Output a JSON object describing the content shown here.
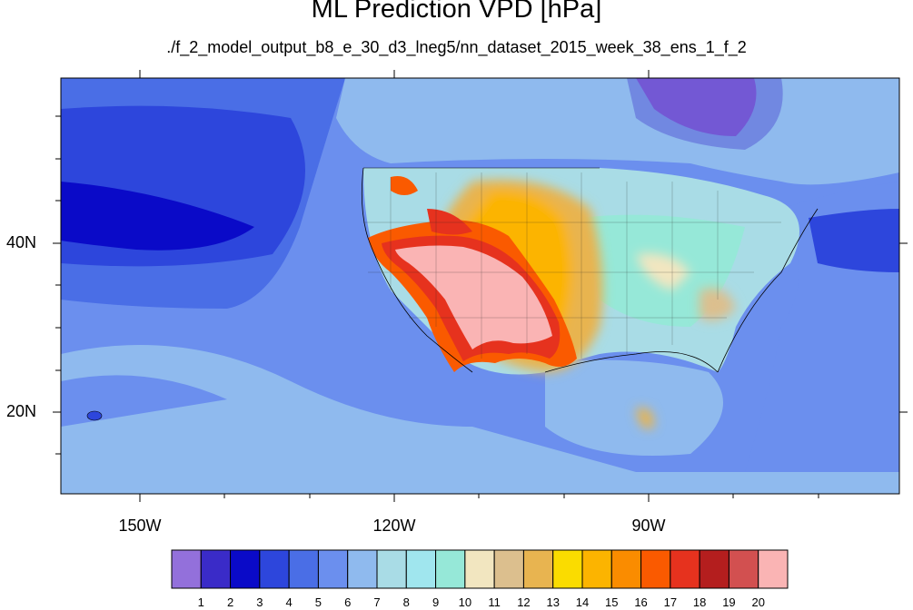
{
  "title": "ML Prediction VPD [hPa]",
  "subtitle": "./f_2_model_output_b8_e_30_d3_lneg5/nn_dataset_2015_week_38_ens_1_f_2",
  "axes": {
    "lon_labels": [
      "150W",
      "120W",
      "90W"
    ],
    "lat_labels": [
      "40N",
      "20N"
    ]
  },
  "colorbar": {
    "labels": [
      "1",
      "2",
      "3",
      "4",
      "5",
      "6",
      "7",
      "8",
      "9",
      "10",
      "11",
      "12",
      "13",
      "14",
      "15",
      "16",
      "17",
      "18",
      "19",
      "20"
    ],
    "colors": [
      "#9370db",
      "#3a2bc8",
      "#0a0ac8",
      "#2d46dc",
      "#4a6ee6",
      "#6b8fee",
      "#8fbaee",
      "#a9dce6",
      "#a0e6ee",
      "#96e8d8",
      "#f2e6c0",
      "#dcbf8e",
      "#e8b450",
      "#fadc00",
      "#fcb400",
      "#fa8c00",
      "#fa5a00",
      "#e6321e",
      "#b41e1e",
      "#d25050",
      "#fab4b4"
    ]
  },
  "chart_data": {
    "type": "heatmap",
    "variable": "VPD",
    "units": "hPa",
    "levels": [
      1,
      2,
      3,
      4,
      5,
      6,
      7,
      8,
      9,
      10,
      11,
      12,
      13,
      14,
      15,
      16,
      17,
      18,
      19,
      20
    ]
  }
}
